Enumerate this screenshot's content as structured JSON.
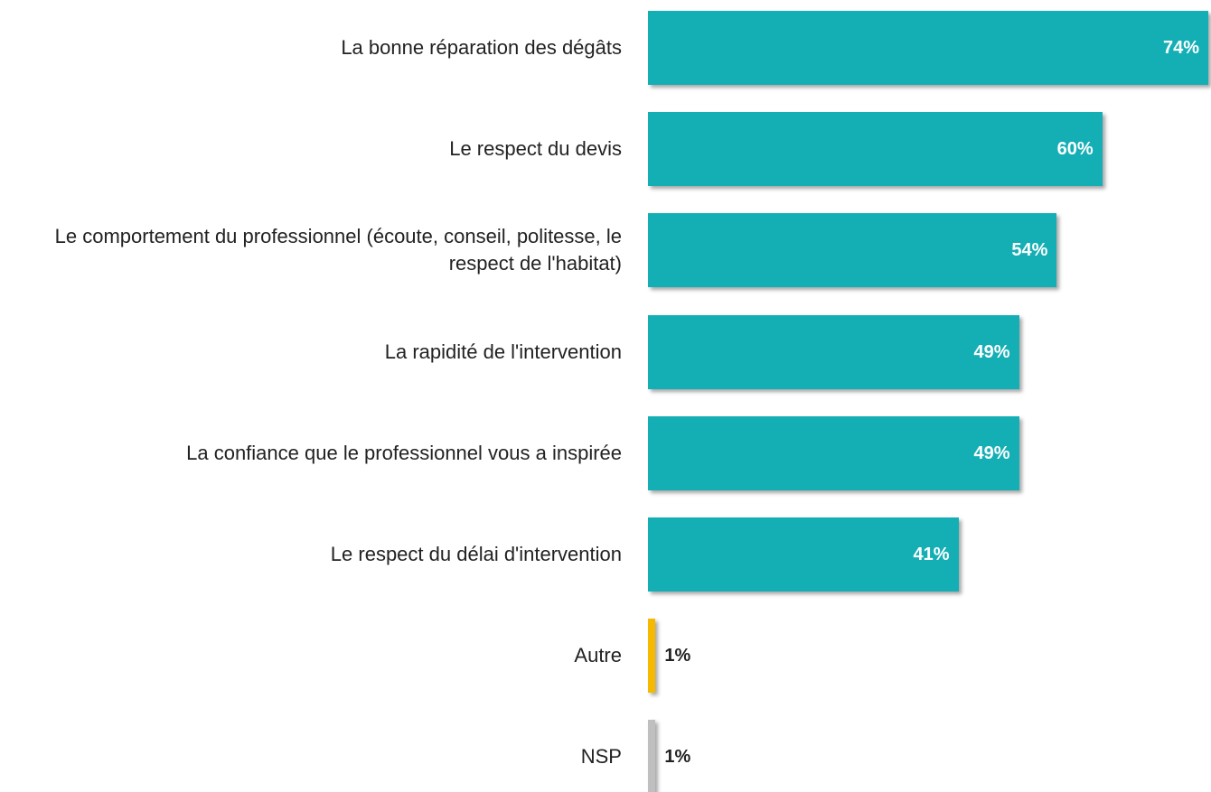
{
  "chart_data": {
    "type": "bar",
    "orientation": "horizontal",
    "categories": [
      "La bonne réparation des dégâts",
      "Le respect du devis",
      "Le comportement du professionnel (écoute, conseil, politesse, le respect de l'habitat)",
      "La rapidité de l'intervention",
      "La confiance que le professionnel vous a inspirée",
      "Le respect du délai d'intervention",
      "Autre",
      "NSP"
    ],
    "values": [
      74,
      60,
      54,
      49,
      49,
      41,
      1,
      1
    ],
    "value_labels": [
      "74%",
      "60%",
      "54%",
      "49%",
      "49%",
      "41%",
      "1%",
      "1%"
    ],
    "colors": [
      "#14afb5",
      "#14afb5",
      "#14afb5",
      "#14afb5",
      "#14afb5",
      "#14afb5",
      "#f5b900",
      "#bfbfbf"
    ]
  }
}
